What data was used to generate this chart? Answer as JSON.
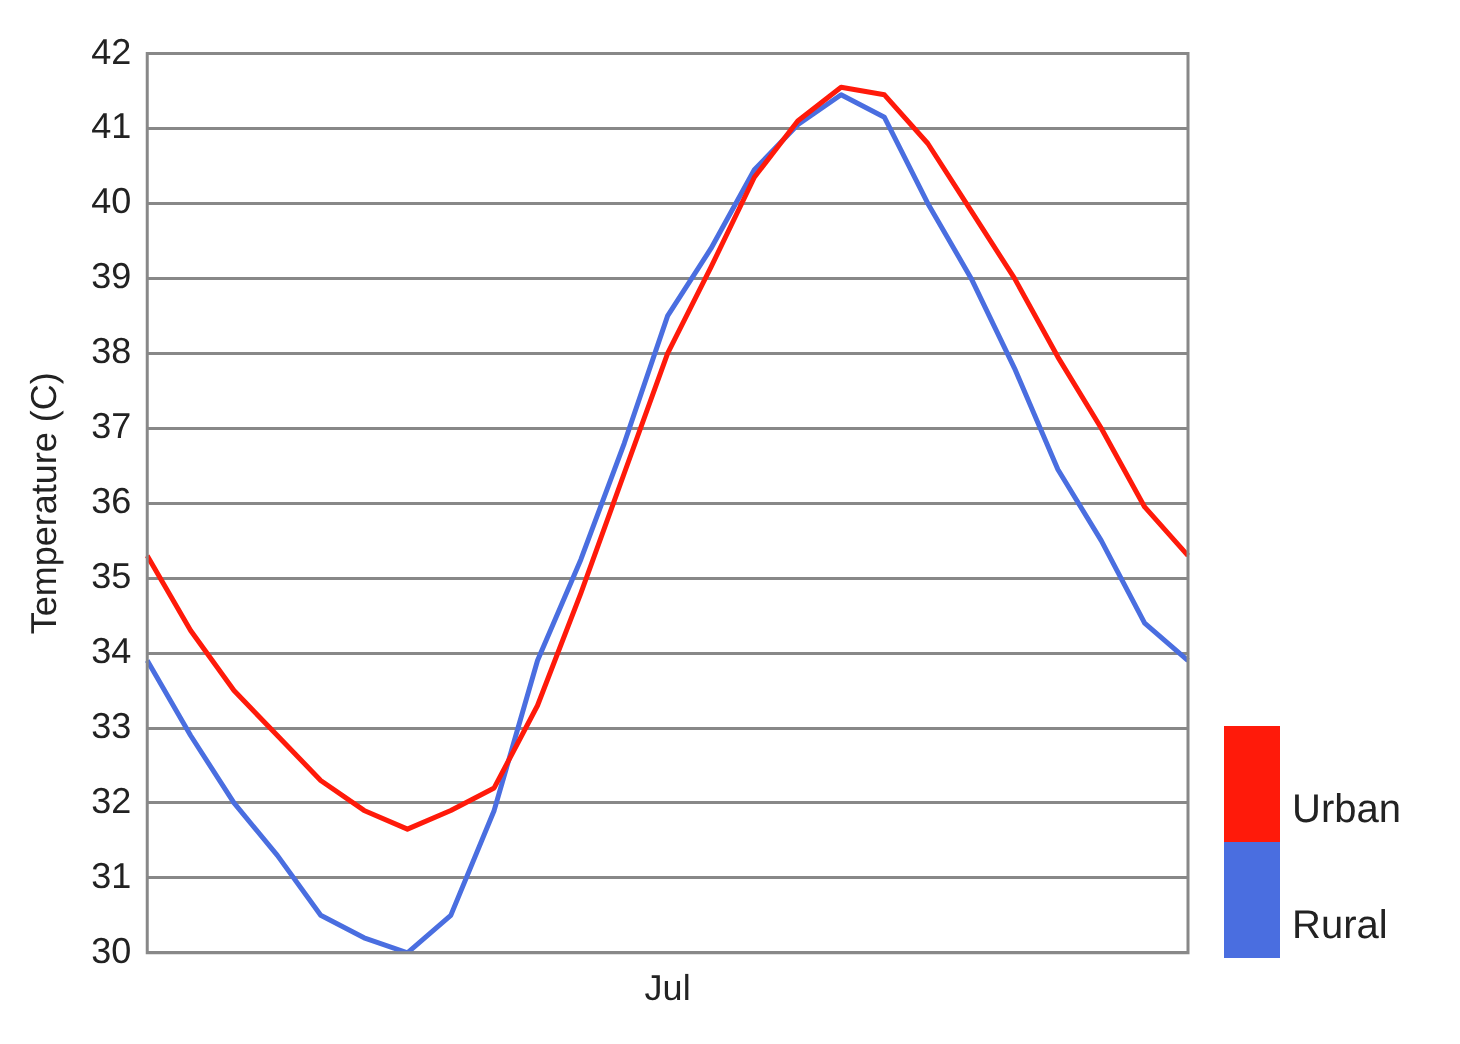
{
  "chart_data": {
    "type": "line",
    "ylabel": "Temperature (C)",
    "categories": [
      null,
      null,
      null,
      null,
      null,
      null,
      null,
      null,
      null,
      null,
      null,
      null,
      "Jul",
      null,
      null,
      null,
      null,
      null,
      null,
      null,
      null,
      null,
      null,
      null,
      null
    ],
    "series": [
      {
        "name": "Urban",
        "color": "#ff1a0a",
        "values": [
          35.3,
          34.3,
          33.5,
          32.9,
          32.3,
          31.9,
          31.65,
          31.9,
          32.2,
          33.3,
          34.8,
          36.4,
          38.0,
          39.15,
          40.35,
          41.1,
          41.55,
          41.45,
          40.8,
          39.9,
          39.0,
          37.95,
          37.0,
          35.95,
          35.3
        ]
      },
      {
        "name": "Rural",
        "color": "#4a6ee0",
        "values": [
          33.9,
          32.9,
          32.0,
          31.3,
          30.5,
          30.2,
          30.0,
          30.5,
          31.9,
          33.9,
          35.25,
          36.8,
          38.5,
          39.4,
          40.45,
          41.05,
          41.45,
          41.15,
          40.0,
          39.0,
          37.8,
          36.45,
          35.5,
          34.4,
          33.9
        ]
      }
    ],
    "ylim": [
      30,
      42
    ],
    "yticks": [
      30,
      31,
      32,
      33,
      34,
      35,
      36,
      37,
      38,
      39,
      40,
      41,
      42
    ],
    "grid": "y",
    "legend": "bottom right",
    "marker": "none",
    "line_style": "solid"
  }
}
